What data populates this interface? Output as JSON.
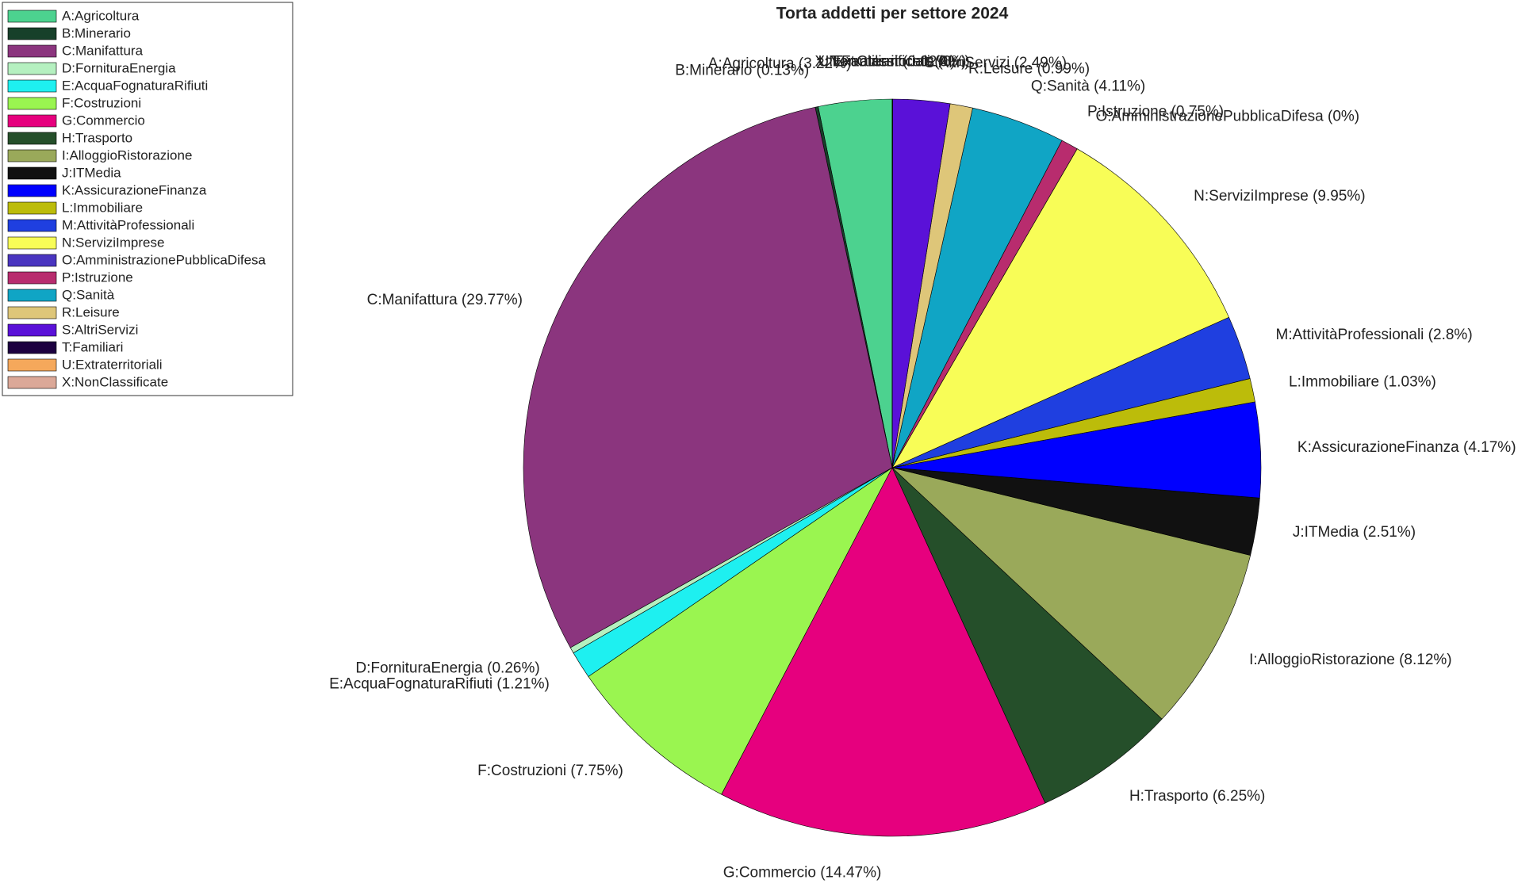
{
  "chart_data": {
    "type": "pie",
    "title": "Torta addetti per settore 2024",
    "categories": [
      "A:Agricoltura",
      "B:Minerario",
      "C:Manifattura",
      "D:FornituraEnergia",
      "E:AcquaFognaturaRifiuti",
      "F:Costruzioni",
      "G:Commercio",
      "H:Trasporto",
      "I:AlloggioRistorazione",
      "J:ITMedia",
      "K:AssicurazioneFinanza",
      "L:Immobiliare",
      "M:AttivitàProfessionali",
      "N:ServiziImprese",
      "O:AmministrazionePubblicaDifesa",
      "P:Istruzione",
      "Q:Sanità",
      "R:Leisure",
      "S:AltriServizi",
      "T:Familiari",
      "U:Extraterritoriali",
      "X:NonClassificate"
    ],
    "values": [
      3.22,
      0.13,
      29.77,
      0.26,
      1.21,
      7.75,
      14.47,
      6.25,
      8.12,
      2.51,
      4.17,
      1.03,
      2.8,
      9.95,
      0,
      0.75,
      4.11,
      0.99,
      2.49,
      0.02,
      0,
      0
    ],
    "value_labels": [
      "A:Agricoltura (3.22%)",
      "B:Minerario (0.13%)",
      "C:Manifattura (29.77%)",
      "D:FornituraEnergia (0.26%)",
      "E:AcquaFognaturaRifiuti (1.21%)",
      "F:Costruzioni (7.75%)",
      "G:Commercio (14.47%)",
      "H:Trasporto (6.25%)",
      "I:AlloggioRistorazione (8.12%)",
      "J:ITMedia (2.51%)",
      "K:AssicurazioneFinanza (4.17%)",
      "L:Immobiliare (1.03%)",
      "M:AttivitàProfessionali (2.8%)",
      "N:ServiziImprese (9.95%)",
      "O:AmministrazionePubblicaDifesa (0%)",
      "P:Istruzione (0.75%)",
      "Q:Sanità (4.11%)",
      "R:Leisure (0.99%)",
      "S:AltriServizi (2.49%)",
      "T:Familiari (0.02%)",
      "U:Extraterritoriali (0%)",
      "X:NonClassificate (0%)"
    ],
    "colors": [
      "#4cd28f",
      "#17402a",
      "#8b357e",
      "#b5f0c0",
      "#1ef0f0",
      "#9af550",
      "#e6007e",
      "#254f2a",
      "#9aa95a",
      "#111111",
      "#0000ff",
      "#bcbc0a",
      "#1f3fe0",
      "#f8fd57",
      "#4a35c0",
      "#b82c6e",
      "#10a5c5",
      "#dec679",
      "#5a11d8",
      "#1c0040",
      "#f5a85b",
      "#dba898"
    ],
    "legend": "upper left"
  }
}
